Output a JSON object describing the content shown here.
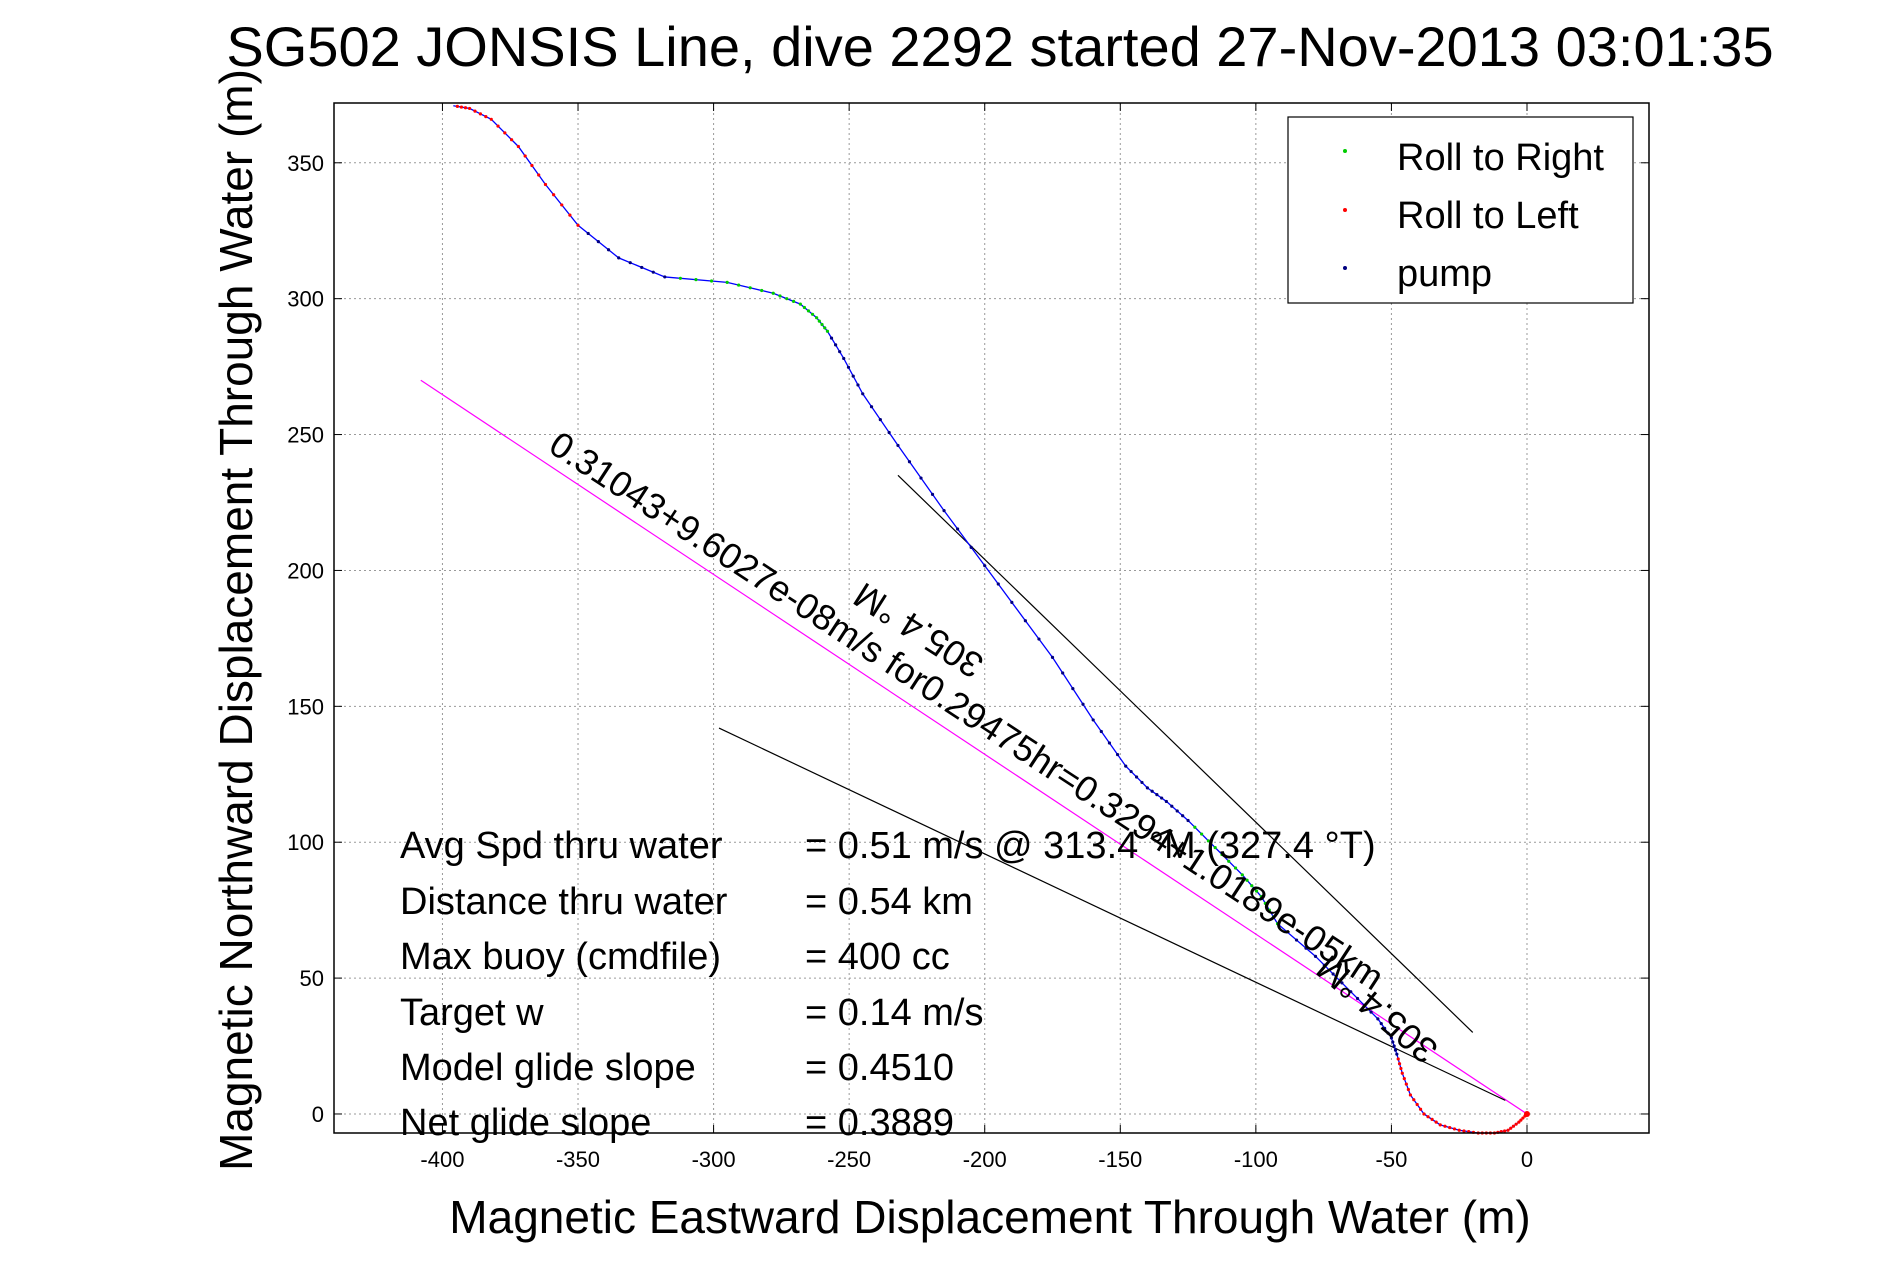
{
  "chart_data": {
    "type": "line",
    "title": "SG502 JONSIS Line, dive 2292 started 27-Nov-2013 03:01:35",
    "xlabel": "Magnetic Eastward Displacement Through Water (m)",
    "ylabel": "Magnetic Northward Displacement Through Water (m)",
    "xlim": [
      -440,
      45
    ],
    "ylim": [
      -7,
      372
    ],
    "xticks": [
      -400,
      -350,
      -300,
      -250,
      -200,
      -150,
      -100,
      -50,
      0
    ],
    "yticks": [
      0,
      50,
      100,
      150,
      200,
      250,
      300,
      350
    ],
    "grid": true,
    "legend_position": "top-right",
    "legend": [
      {
        "label": "Roll to Right",
        "color": "#00cc00"
      },
      {
        "label": "Roll to Left",
        "color": "#ff0000"
      },
      {
        "label": "pump",
        "color": "#000080"
      }
    ],
    "track": {
      "name": "glider track",
      "color": "#0000ff",
      "x": [
        0,
        -3,
        -7,
        -12,
        -18,
        -25,
        -32,
        -38,
        -43,
        -46,
        -48,
        -50,
        -55,
        -65,
        -78,
        -92,
        -98,
        -105,
        -115,
        -125,
        -133,
        -140,
        -148,
        -160,
        -175,
        -195,
        -215,
        -232,
        -245,
        -252,
        -258,
        -262,
        -268,
        -278,
        -295,
        -318,
        -335,
        -350,
        -362,
        -372,
        -382,
        -390,
        -396
      ],
      "y": [
        0,
        -3,
        -6,
        -7,
        -7,
        -6,
        -4,
        0,
        7,
        15,
        22,
        28,
        35,
        45,
        58,
        70,
        80,
        88,
        98,
        108,
        115,
        120,
        128,
        145,
        168,
        195,
        222,
        246,
        265,
        278,
        288,
        293,
        298,
        302,
        306,
        308,
        315,
        327,
        342,
        356,
        366,
        370,
        371
      ]
    },
    "lines": [
      {
        "name": "depth-averaged current vector",
        "color": "#ff00ff",
        "x": [
          0,
          -408
        ],
        "y": [
          0,
          270
        ]
      },
      {
        "name": "upper heading line",
        "color": "#000000",
        "x": [
          -232,
          -20
        ],
        "y": [
          235,
          30
        ]
      },
      {
        "name": "lower heading line",
        "color": "#000000",
        "x": [
          -298,
          -8
        ],
        "y": [
          142,
          5
        ]
      }
    ],
    "annotations": [
      {
        "text": "0.31043+9.6027e-08m/s for0.29475hr=0.3294+1.0189e-05km"
      },
      {
        "text": "305.4 °M"
      },
      {
        "text": "305.4 °M"
      }
    ],
    "stats": [
      {
        "label": "Avg Spd thru water",
        "value": "=  0.51 m/s @ 313.4 °M (327.4 °T)"
      },
      {
        "label": "Distance thru water",
        "value": "=  0.54 km"
      },
      {
        "label": "Max buoy (cmdfile)",
        "value": "= 400 cc"
      },
      {
        "label": "Target w",
        "value": "= 0.14 m/s"
      },
      {
        "label": "Model glide slope",
        "value": "= 0.4510"
      },
      {
        "label": "Net glide slope",
        "value": "= 0.3889"
      }
    ]
  }
}
